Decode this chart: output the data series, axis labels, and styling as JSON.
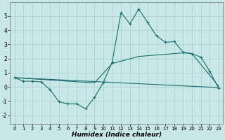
{
  "xlabel": "Humidex (Indice chaleur)",
  "ylabel": "",
  "background_color": "#c8e8e8",
  "grid_color": "#a8cccc",
  "line_color": "#1a6b6b",
  "xlim": [
    -0.5,
    23.5
  ],
  "ylim": [
    -2.6,
    6.0
  ],
  "yticks": [
    -2,
    -1,
    0,
    1,
    2,
    3,
    4,
    5
  ],
  "xticks": [
    0,
    1,
    2,
    3,
    4,
    5,
    6,
    7,
    8,
    9,
    10,
    11,
    12,
    13,
    14,
    15,
    16,
    17,
    18,
    19,
    20,
    21,
    22,
    23
  ],
  "series1_x": [
    0,
    1,
    2,
    3,
    4,
    5,
    6,
    7,
    8,
    9,
    10,
    11,
    12,
    13,
    14,
    15,
    16,
    17,
    18,
    19,
    20,
    21,
    22,
    23
  ],
  "series1_y": [
    0.65,
    0.4,
    0.4,
    0.35,
    -0.2,
    -1.05,
    -1.2,
    -1.2,
    -1.55,
    -0.75,
    0.3,
    1.75,
    5.25,
    4.45,
    5.5,
    4.55,
    3.6,
    3.15,
    3.2,
    2.45,
    2.35,
    2.1,
    1.1,
    -0.1
  ],
  "series2_x": [
    0,
    23
  ],
  "series2_y": [
    0.65,
    -0.05
  ],
  "series3_x": [
    0,
    9,
    11,
    14,
    19,
    20,
    23
  ],
  "series3_y": [
    0.65,
    0.28,
    1.65,
    2.15,
    2.4,
    2.35,
    0.05
  ]
}
